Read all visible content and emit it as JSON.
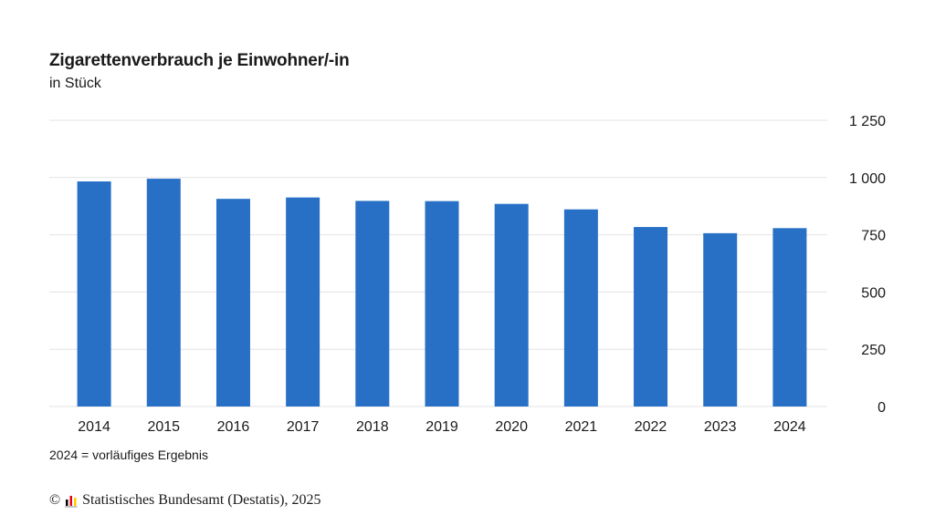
{
  "title": "Zigarettenverbrauch je Einwohner/-in",
  "subtitle": "in Stück",
  "footnote": "2024 = vorläufiges Ergebnis",
  "source": {
    "copyright_symbol": "©",
    "text": "Statistisches Bundesamt (Destatis), 2025",
    "logo_icon": "destatis-logo-icon"
  },
  "colors": {
    "bar": "#2870c6",
    "grid": "#e3e3e3",
    "text": "#1a1a1a"
  },
  "chart_data": {
    "type": "bar",
    "categories": [
      "2014",
      "2015",
      "2016",
      "2017",
      "2018",
      "2019",
      "2020",
      "2021",
      "2022",
      "2023",
      "2024"
    ],
    "values": [
      983,
      995,
      907,
      913,
      898,
      897,
      885,
      861,
      784,
      757,
      779
    ],
    "title": "Zigarettenverbrauch je Einwohner/-in",
    "ylabel": "in Stück",
    "xlabel": "",
    "ylim": [
      0,
      1250
    ],
    "yticks": [
      0,
      250,
      500,
      750,
      1000,
      1250
    ],
    "ytick_labels": [
      "0",
      "250",
      "500",
      "750",
      "1 000",
      "1 250"
    ],
    "grid": true,
    "y_axis_side": "right"
  }
}
